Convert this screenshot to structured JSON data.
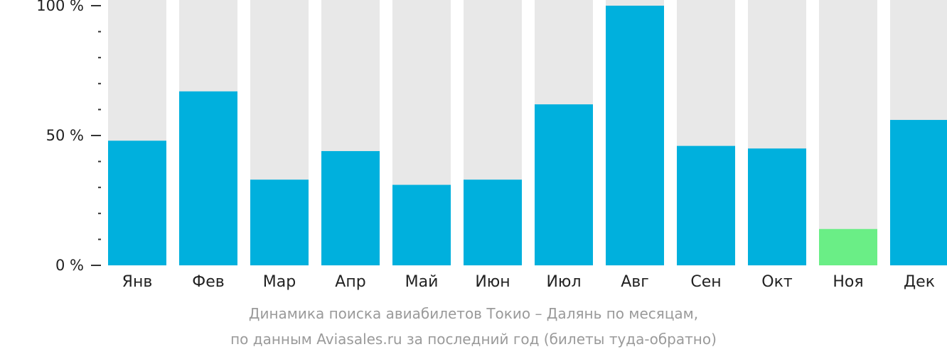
{
  "chart_data": {
    "type": "bar",
    "categories": [
      "Янв",
      "Фев",
      "Мар",
      "Апр",
      "Май",
      "Июн",
      "Июл",
      "Авг",
      "Сен",
      "Окт",
      "Ноя",
      "Дек"
    ],
    "values": [
      48,
      67,
      33,
      44,
      31,
      33,
      62,
      100,
      46,
      45,
      14,
      56
    ],
    "ylim": [
      0,
      100
    ],
    "yticks": [
      {
        "value": 0,
        "label": "0 %"
      },
      {
        "value": 50,
        "label": "50 %"
      },
      {
        "value": 100,
        "label": "100 %"
      }
    ],
    "minor_ytick_step": 10,
    "background_track": true,
    "highlight_category": "Ноя",
    "colors": {
      "bar": "#00b0dd",
      "highlight": "#6aee86",
      "track": "#e8e8e8",
      "axis": "#333333",
      "tick_label": "#222222",
      "caption": "#9a9a9a"
    }
  },
  "caption": {
    "line1": "Динамика поиска авиабилетов Токио – Далянь по месяцам,",
    "line2": "по данным Aviasales.ru за последний год (билеты туда-обратно)"
  }
}
